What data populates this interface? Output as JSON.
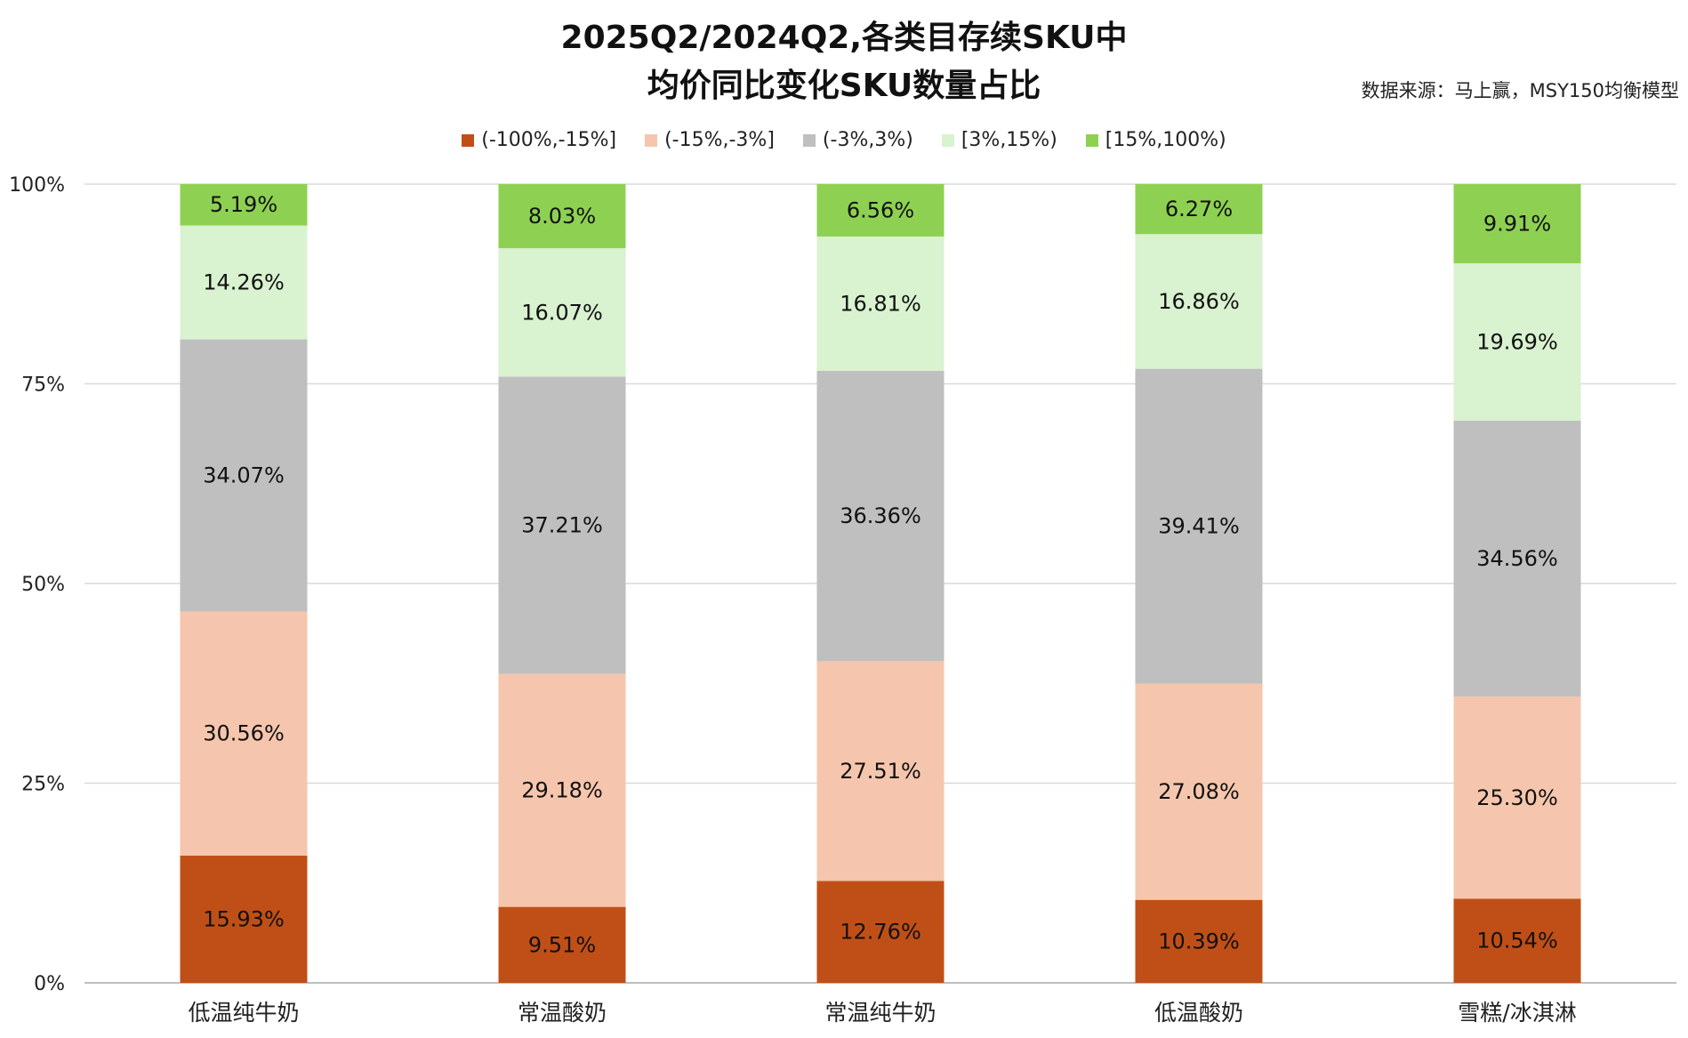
{
  "title_line1": "2025Q2/2024Q2,各类目存续SKU中",
  "title_line2": "均价同比变化SKU数量占比",
  "source": "数据来源：马上赢，MSY150均衡模型",
  "chart_data": {
    "type": "bar",
    "stacked": true,
    "categories": [
      "低温纯牛奶",
      "常温酸奶",
      "常温纯牛奶",
      "低温酸奶",
      "雪糕/冰淇淋"
    ],
    "series": [
      {
        "name": "(-100%,-15%]",
        "color": "#C04F17",
        "values": [
          15.93,
          9.51,
          12.76,
          10.39,
          10.54
        ],
        "labels": [
          "15.93%",
          "9.51%",
          "12.76%",
          "10.39%",
          "10.54%"
        ]
      },
      {
        "name": "(-15%,-3%]",
        "color": "#F5C6AD",
        "values": [
          30.56,
          29.18,
          27.51,
          27.08,
          25.3
        ],
        "labels": [
          "30.56%",
          "29.18%",
          "27.51%",
          "27.08%",
          "25.30%"
        ]
      },
      {
        "name": "(-3%,3%)",
        "color": "#BFBFBF",
        "values": [
          34.07,
          37.21,
          36.36,
          39.41,
          34.56
        ],
        "labels": [
          "34.07%",
          "37.21%",
          "36.36%",
          "39.41%",
          "34.56%"
        ]
      },
      {
        "name": "[3%,15%)",
        "color": "#D9F2D0",
        "values": [
          14.26,
          16.07,
          16.81,
          16.86,
          19.69
        ],
        "labels": [
          "14.26%",
          "16.07%",
          "16.81%",
          "16.86%",
          "19.69%"
        ]
      },
      {
        "name": "[15%,100%)",
        "color": "#8ED152",
        "values": [
          5.19,
          8.03,
          6.56,
          6.27,
          9.91
        ],
        "labels": [
          "5.19%",
          "8.03%",
          "6.56%",
          "6.27%",
          "9.91%"
        ]
      }
    ],
    "ylim": [
      0,
      100
    ],
    "yticks": [
      0,
      25,
      50,
      75,
      100
    ],
    "ytick_labels": [
      "0%",
      "25%",
      "50%",
      "75%",
      "100%"
    ],
    "grid": true,
    "legend_position": "top-center",
    "gridline_color": "#D9D9D9",
    "axis_color": "#BFBFBF"
  }
}
